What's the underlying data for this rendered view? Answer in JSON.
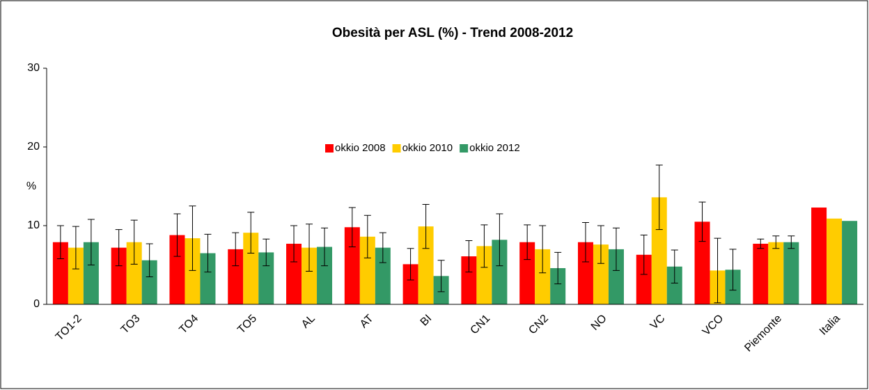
{
  "chart_data": {
    "type": "bar",
    "title": "Obesità per ASL (%) - Trend 2008-2012",
    "y_label": "%",
    "categories": [
      "TO1-2",
      "TO3",
      "TO4",
      "TO5",
      "AL",
      "AT",
      "BI",
      "CN1",
      "CN2",
      "NO",
      "VC",
      "VCO",
      "Piemonte",
      "Italia"
    ],
    "series": [
      {
        "name": "okkio 2008",
        "color": "#ff0000",
        "values": [
          7.9,
          7.2,
          8.8,
          7.0,
          7.7,
          9.8,
          5.1,
          6.1,
          7.9,
          7.9,
          6.3,
          10.5,
          7.7,
          12.3
        ],
        "errors": [
          2.1,
          2.3,
          2.7,
          2.1,
          2.3,
          2.5,
          2.0,
          2.0,
          2.2,
          2.5,
          2.5,
          2.5,
          0.6,
          null
        ]
      },
      {
        "name": "okkio 2010",
        "color": "#ffcc00",
        "values": [
          7.2,
          7.9,
          8.4,
          9.1,
          7.2,
          8.6,
          9.9,
          7.4,
          7.0,
          7.6,
          13.6,
          4.3,
          7.9,
          10.9
        ],
        "errors": [
          2.7,
          2.8,
          4.1,
          2.6,
          3.0,
          2.7,
          2.8,
          2.7,
          3.0,
          2.4,
          4.1,
          4.1,
          0.8,
          null
        ]
      },
      {
        "name": "okkio 2012",
        "color": "#339966",
        "values": [
          7.9,
          5.6,
          6.5,
          6.6,
          7.3,
          7.2,
          3.6,
          8.2,
          4.6,
          7.0,
          4.8,
          4.4,
          7.9,
          10.6
        ],
        "errors": [
          2.9,
          2.1,
          2.4,
          1.7,
          2.4,
          1.9,
          2.0,
          3.3,
          2.0,
          2.7,
          2.1,
          2.6,
          0.8,
          null
        ]
      }
    ],
    "ylim": [
      0,
      30
    ],
    "yticks": [
      0,
      10,
      20,
      30
    ],
    "grid": false,
    "legend": "center"
  }
}
